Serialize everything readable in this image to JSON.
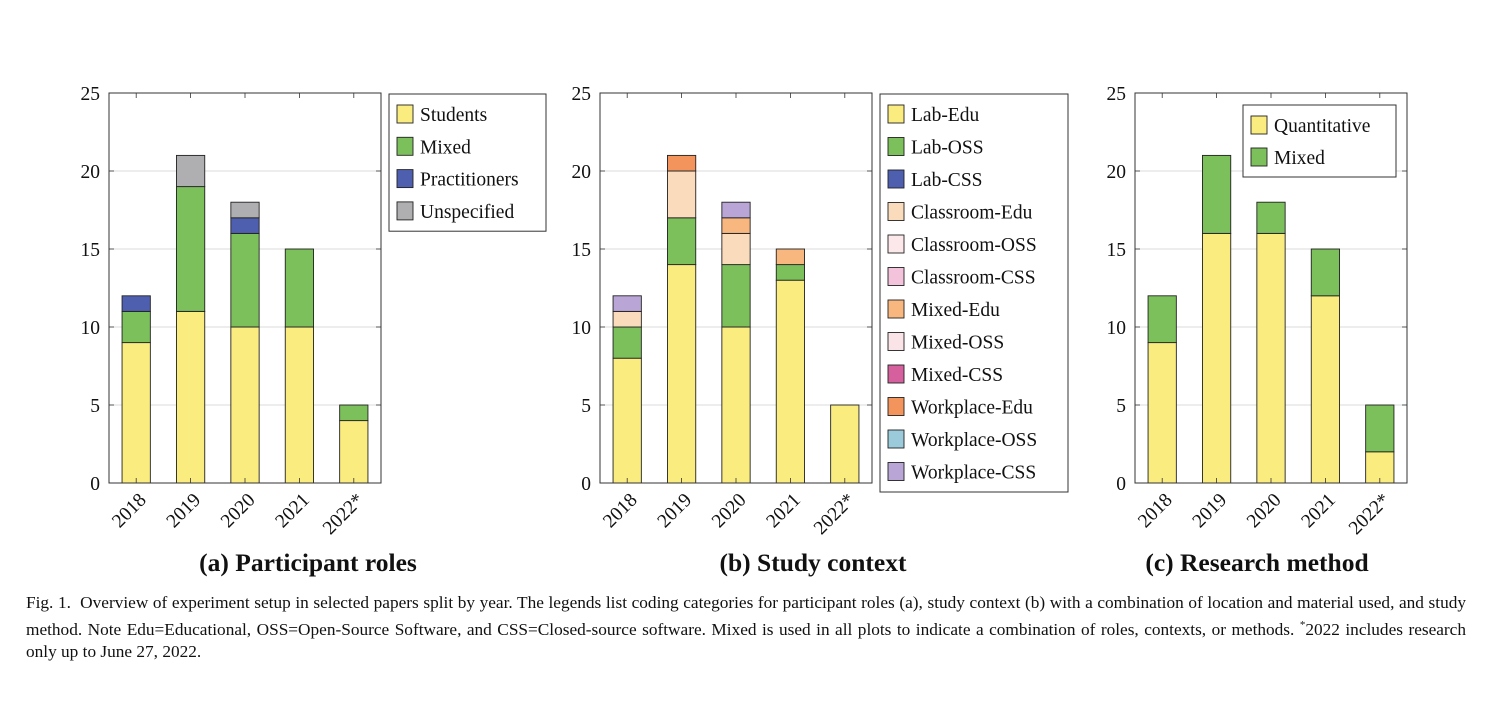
{
  "colors": {
    "yellow": "#FAEC7E",
    "green": "#7BC05A",
    "blue": "#4F5FAF",
    "gray": "#AFAFB1",
    "peach": "#FADCBC",
    "lightpink": "#FCE7EA",
    "pink": "#F3C3DB",
    "orange": "#F8B77E",
    "palepink": "#FBE4E7",
    "magenta": "#D6609E",
    "darkorange": "#F3945C",
    "lightblue": "#9BCADA",
    "lavender": "#B9A5D6"
  },
  "chart_data": [
    {
      "type": "bar",
      "stacked": true,
      "title": "(a) Participant roles",
      "categories": [
        "2018",
        "2019",
        "2020",
        "2021",
        "2022*"
      ],
      "ylim": [
        0,
        25
      ],
      "yticks": [
        "0",
        "5",
        "10",
        "15",
        "20",
        "25"
      ],
      "grid": true,
      "legend_position": "right-outside",
      "series": [
        {
          "name": "Students",
          "color": "#FAEC7E",
          "values": [
            9,
            11,
            10,
            10,
            4
          ]
        },
        {
          "name": "Mixed",
          "color": "#7BC05A",
          "values": [
            2,
            8,
            6,
            5,
            1
          ]
        },
        {
          "name": "Practitioners",
          "color": "#4F5FAF",
          "values": [
            1,
            0,
            1,
            0,
            0
          ]
        },
        {
          "name": "Unspecified",
          "color": "#AFAFB1",
          "values": [
            0,
            2,
            1,
            0,
            0
          ]
        }
      ]
    },
    {
      "type": "bar",
      "stacked": true,
      "title": "(b) Study context",
      "categories": [
        "2018",
        "2019",
        "2020",
        "2021",
        "2022*"
      ],
      "ylim": [
        0,
        25
      ],
      "yticks": [
        "0",
        "5",
        "10",
        "15",
        "20",
        "25"
      ],
      "grid": true,
      "legend_position": "right-outside",
      "series": [
        {
          "name": "Lab-Edu",
          "color": "#FAEC7E",
          "values": [
            8,
            14,
            10,
            13,
            5
          ]
        },
        {
          "name": "Lab-OSS",
          "color": "#7BC05A",
          "values": [
            2,
            3,
            4,
            1,
            0
          ]
        },
        {
          "name": "Lab-CSS",
          "color": "#4F5FAF",
          "values": [
            0,
            0,
            0,
            0,
            0
          ]
        },
        {
          "name": "Classroom-Edu",
          "color": "#FADCBC",
          "values": [
            1,
            3,
            2,
            0,
            0
          ]
        },
        {
          "name": "Classroom-OSS",
          "color": "#FCE7EA",
          "values": [
            0,
            0,
            0,
            0,
            0
          ]
        },
        {
          "name": "Classroom-CSS",
          "color": "#F3C3DB",
          "values": [
            0,
            0,
            0,
            0,
            0
          ]
        },
        {
          "name": "Mixed-Edu",
          "color": "#F8B77E",
          "values": [
            0,
            0,
            1,
            1,
            0
          ]
        },
        {
          "name": "Mixed-OSS",
          "color": "#FBE4E7",
          "values": [
            0,
            0,
            0,
            0,
            0
          ]
        },
        {
          "name": "Mixed-CSS",
          "color": "#D6609E",
          "values": [
            0,
            0,
            0,
            0,
            0
          ]
        },
        {
          "name": "Workplace-Edu",
          "color": "#F3945C",
          "values": [
            0,
            1,
            0,
            0,
            0
          ]
        },
        {
          "name": "Workplace-OSS",
          "color": "#9BCADA",
          "values": [
            0,
            0,
            0,
            0,
            0
          ]
        },
        {
          "name": "Workplace-CSS",
          "color": "#B9A5D6",
          "values": [
            1,
            0,
            1,
            0,
            0
          ]
        }
      ]
    },
    {
      "type": "bar",
      "stacked": true,
      "title": "(c) Research method",
      "categories": [
        "2018",
        "2019",
        "2020",
        "2021",
        "2022*"
      ],
      "ylim": [
        0,
        25
      ],
      "yticks": [
        "0",
        "5",
        "10",
        "15",
        "20",
        "25"
      ],
      "grid": true,
      "legend_position": "top-right",
      "series": [
        {
          "name": "Quantitative",
          "color": "#FAEC7E",
          "values": [
            9,
            16,
            16,
            12,
            2
          ]
        },
        {
          "name": "Mixed",
          "color": "#7BC05A",
          "values": [
            3,
            5,
            2,
            3,
            3
          ]
        }
      ]
    }
  ],
  "caption": {
    "prefix": "Fig. 1.",
    "text": "Overview of experiment setup in selected papers split by year. The legends list coding categories for participant roles (a), study context (b) with a combination of location and material used, and study method. Note Edu=Educational, OSS=Open-Source Software, and CSS=Closed-source software. Mixed is used in all plots to indicate a combination of roles, contexts, or methods.",
    "footnote_mark": "*",
    "footnote": "2022 includes research only up to June 27, 2022."
  }
}
